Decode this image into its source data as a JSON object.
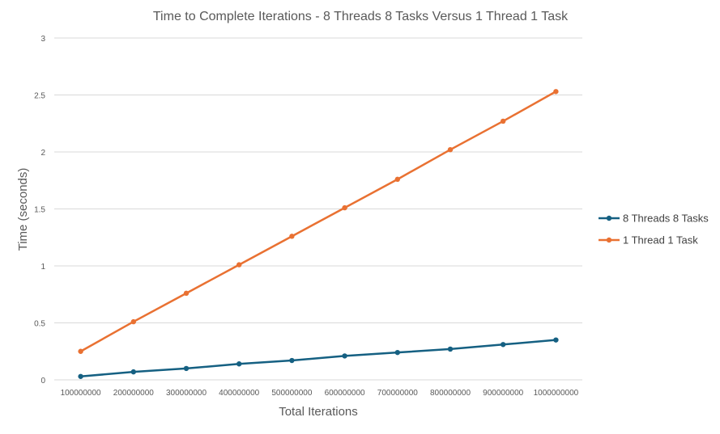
{
  "chart_data": {
    "type": "line",
    "title": "Time to Complete Iterations  - 8 Threads 8 Tasks Versus 1 Thread 1 Task",
    "xlabel": "Total Iterations",
    "ylabel": "Time (seconds)",
    "categories": [
      "100000000",
      "200000000",
      "300000000",
      "400000000",
      "500000000",
      "600000000",
      "700000000",
      "800000000",
      "900000000",
      "1000000000"
    ],
    "yticks": [
      "0",
      "0.5",
      "1",
      "1.5",
      "2",
      "2.5",
      "3"
    ],
    "ylim": [
      0,
      3
    ],
    "grid": true,
    "legend_position": "right",
    "series": [
      {
        "name": "8 Threads 8 Tasks",
        "color": "#156082",
        "values": [
          0.03,
          0.07,
          0.1,
          0.14,
          0.17,
          0.21,
          0.24,
          0.27,
          0.31,
          0.35
        ]
      },
      {
        "name": "1 Thread 1 Task",
        "color": "#e97132",
        "values": [
          0.25,
          0.51,
          0.76,
          1.01,
          1.26,
          1.51,
          1.76,
          2.02,
          2.27,
          2.53
        ]
      }
    ]
  }
}
